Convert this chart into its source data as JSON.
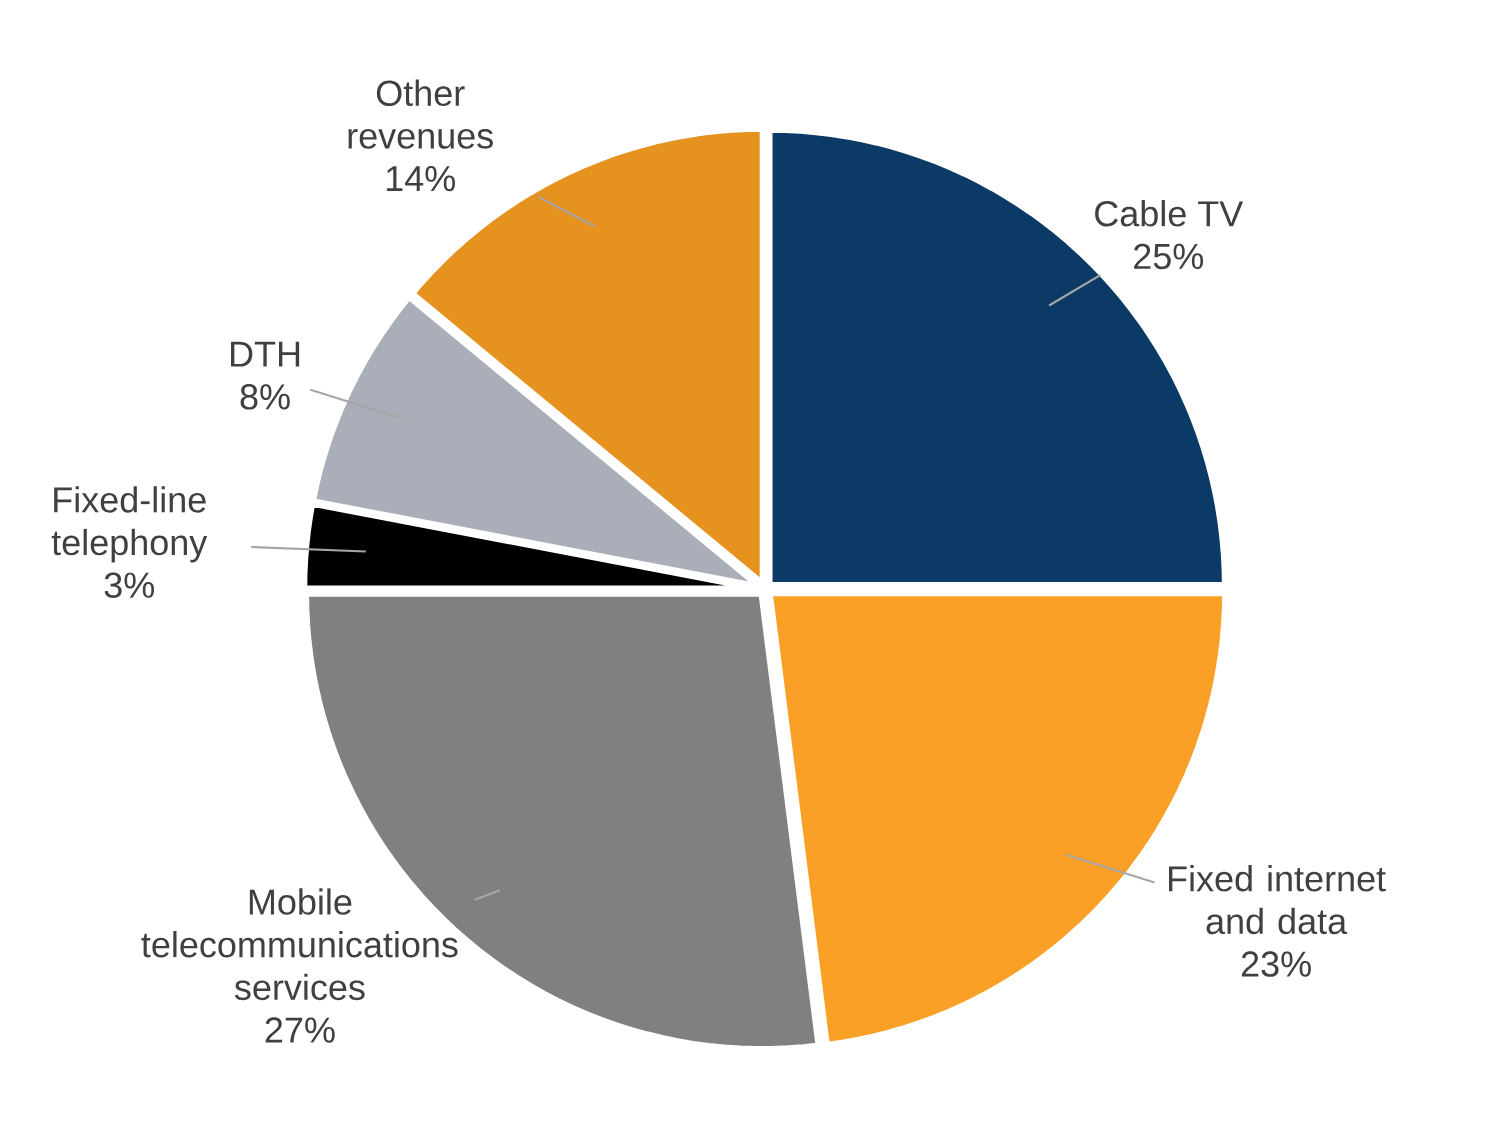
{
  "chart_data": {
    "type": "pie",
    "categories": [
      "Cable TV",
      "Fixed internet and data",
      "Mobile telecommunications services",
      "Fixed-line telephony",
      "DTH",
      "Other revenues"
    ],
    "values": [
      25,
      23,
      27,
      3,
      8,
      14
    ],
    "value_labels": [
      "25%",
      "23%",
      "27%",
      "3%",
      "8%",
      "14%"
    ],
    "colors": [
      "#0b3a66",
      "#fba026",
      "#808080",
      "#000000",
      "#a9aeb8",
      "#e6921f"
    ]
  }
}
